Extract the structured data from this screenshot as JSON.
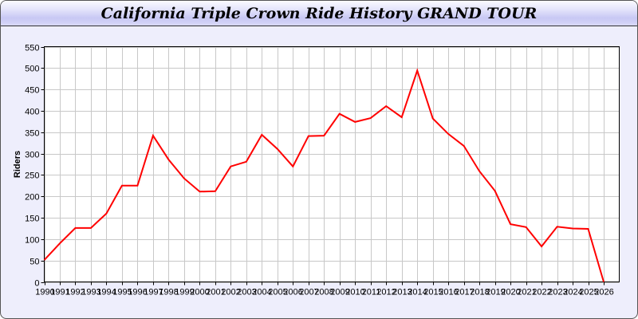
{
  "chart_data": {
    "type": "line",
    "title": "California Triple Crown Ride History GRAND TOUR",
    "xlabel": "",
    "ylabel": "Riders",
    "x": [
      1990,
      1991,
      1992,
      1993,
      1994,
      1995,
      1996,
      1997,
      1998,
      1999,
      2000,
      2001,
      2002,
      2003,
      2004,
      2005,
      2006,
      2007,
      2008,
      2009,
      2010,
      2011,
      2012,
      2013,
      2014,
      2015,
      2016,
      2017,
      2018,
      2019,
      2020,
      2021,
      2022,
      2023,
      2024,
      2025,
      2026
    ],
    "series": [
      {
        "values": [
          51,
          90,
          126,
          126,
          160,
          225,
          225,
          342,
          286,
          242,
          211,
          212,
          270,
          281,
          344,
          311,
          270,
          341,
          342,
          393,
          374,
          383,
          411,
          385,
          494,
          382,
          346,
          318,
          259,
          213,
          135,
          128,
          83,
          129,
          125,
          124,
          0
        ]
      }
    ],
    "xlim": [
      1990,
      2027
    ],
    "ylim": [
      0,
      550
    ],
    "yticks": [
      0,
      50,
      100,
      150,
      200,
      250,
      300,
      350,
      400,
      450,
      500,
      550
    ],
    "grid": true,
    "line_color": "#ff0000",
    "grid_color": "#c8c8c8",
    "background": "#eeeefc"
  }
}
